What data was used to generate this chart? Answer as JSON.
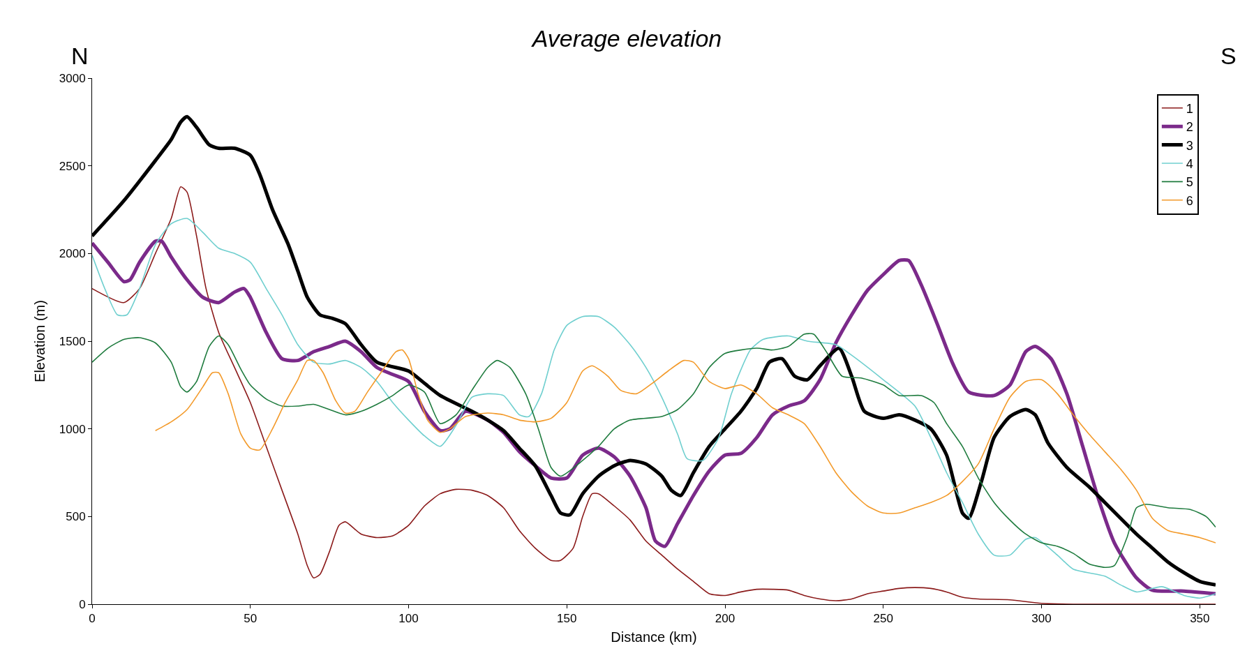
{
  "chart_data": {
    "type": "line",
    "title": "Average elevation",
    "xlabel": "Distance (km)",
    "ylabel": "Elevation (m)",
    "annotations": [
      "N",
      "S"
    ],
    "xlim": [
      0,
      355
    ],
    "xticks": [
      0,
      50,
      100,
      150,
      200,
      250,
      300,
      350
    ],
    "ylim": [
      0,
      3000
    ],
    "yticks": [
      0,
      500,
      1000,
      1500,
      2000,
      2500,
      3000
    ],
    "grid": false,
    "legend": "top right",
    "marker": "none",
    "line_style": "solid",
    "series": [
      {
        "name": "1",
        "color": "#8b1a1a",
        "x": [
          0,
          10,
          15,
          20,
          25,
          28,
          30,
          33,
          36,
          40,
          45,
          50,
          55,
          60,
          65,
          68,
          70,
          72,
          75,
          78,
          80,
          85,
          90,
          95,
          100,
          105,
          110,
          115,
          120,
          125,
          130,
          135,
          140,
          145,
          148,
          152,
          155,
          158,
          160,
          165,
          170,
          175,
          180,
          185,
          190,
          195,
          200,
          205,
          210,
          215,
          220,
          225,
          230,
          235,
          240,
          245,
          250,
          255,
          260,
          265,
          270,
          275,
          280,
          290,
          300,
          310,
          355
        ],
        "values": [
          1800,
          1720,
          1800,
          2000,
          2200,
          2380,
          2350,
          2100,
          1800,
          1550,
          1350,
          1150,
          900,
          650,
          400,
          220,
          150,
          170,
          300,
          450,
          470,
          400,
          380,
          390,
          450,
          560,
          630,
          655,
          650,
          620,
          550,
          420,
          320,
          250,
          250,
          320,
          500,
          630,
          630,
          560,
          480,
          360,
          280,
          200,
          130,
          60,
          50,
          70,
          85,
          85,
          80,
          50,
          30,
          20,
          30,
          60,
          75,
          90,
          95,
          90,
          70,
          40,
          30,
          25,
          5,
          0,
          0
        ]
      },
      {
        "name": "2",
        "color": "#7b2a8a",
        "x": [
          0,
          5,
          10,
          12,
          15,
          20,
          22,
          25,
          30,
          35,
          40,
          45,
          48,
          50,
          55,
          60,
          65,
          70,
          75,
          80,
          85,
          90,
          95,
          100,
          105,
          110,
          113,
          118,
          125,
          130,
          135,
          140,
          145,
          150,
          155,
          160,
          165,
          170,
          175,
          178,
          181,
          185,
          190,
          195,
          200,
          205,
          210,
          215,
          220,
          225,
          230,
          235,
          240,
          245,
          250,
          255,
          258,
          262,
          267,
          272,
          277,
          285,
          290,
          295,
          298,
          303,
          308,
          313,
          318,
          323,
          330,
          335,
          345,
          355
        ],
        "values": [
          2060,
          1950,
          1840,
          1850,
          1950,
          2070,
          2070,
          1980,
          1850,
          1750,
          1720,
          1780,
          1800,
          1750,
          1550,
          1400,
          1390,
          1440,
          1470,
          1500,
          1440,
          1350,
          1310,
          1270,
          1100,
          990,
          1000,
          1100,
          1050,
          980,
          870,
          790,
          720,
          720,
          850,
          890,
          840,
          730,
          550,
          360,
          330,
          460,
          620,
          760,
          850,
          860,
          950,
          1080,
          1130,
          1160,
          1280,
          1490,
          1650,
          1790,
          1880,
          1960,
          1960,
          1820,
          1600,
          1370,
          1210,
          1190,
          1250,
          1440,
          1470,
          1400,
          1200,
          900,
          600,
          350,
          150,
          80,
          75,
          60
        ]
      },
      {
        "name": "3",
        "color": "#000000",
        "x": [
          0,
          10,
          20,
          25,
          28,
          30,
          33,
          37,
          40,
          45,
          50,
          53,
          57,
          62,
          65,
          68,
          72,
          76,
          80,
          85,
          90,
          100,
          105,
          110,
          120,
          125,
          130,
          135,
          140,
          145,
          148,
          151,
          155,
          160,
          165,
          170,
          175,
          180,
          183,
          186,
          190,
          195,
          200,
          205,
          210,
          214,
          218,
          222,
          226,
          230,
          236,
          240,
          244,
          250,
          255,
          260,
          265,
          270,
          275,
          277,
          281,
          285,
          290,
          295,
          298,
          302,
          308,
          315,
          320,
          330,
          335,
          340,
          345,
          350,
          355
        ],
        "values": [
          2100,
          2300,
          2530,
          2650,
          2750,
          2780,
          2720,
          2620,
          2600,
          2600,
          2560,
          2450,
          2250,
          2050,
          1900,
          1750,
          1650,
          1630,
          1600,
          1480,
          1380,
          1330,
          1260,
          1190,
          1100,
          1050,
          990,
          890,
          790,
          620,
          520,
          510,
          630,
          730,
          790,
          820,
          800,
          730,
          650,
          620,
          750,
          900,
          1000,
          1100,
          1230,
          1380,
          1400,
          1300,
          1280,
          1360,
          1460,
          1300,
          1100,
          1060,
          1080,
          1050,
          1000,
          850,
          520,
          490,
          700,
          950,
          1070,
          1110,
          1080,
          920,
          780,
          670,
          580,
          400,
          320,
          240,
          180,
          130,
          110
        ]
      },
      {
        "name": "4",
        "color": "#6fcfcf",
        "x": [
          0,
          4,
          8,
          11,
          15,
          20,
          25,
          30,
          35,
          40,
          45,
          50,
          55,
          60,
          65,
          70,
          75,
          80,
          85,
          90,
          95,
          100,
          105,
          110,
          115,
          120,
          125,
          130,
          135,
          138,
          142,
          146,
          150,
          155,
          160,
          165,
          170,
          175,
          180,
          185,
          188,
          193,
          198,
          202,
          208,
          212,
          220,
          226,
          235,
          240,
          250,
          260,
          265,
          270,
          275,
          280,
          285,
          290,
          295,
          298,
          305,
          310,
          320,
          325,
          330,
          338,
          345,
          350,
          355
        ],
        "values": [
          1990,
          1800,
          1650,
          1650,
          1800,
          2050,
          2170,
          2200,
          2120,
          2030,
          2000,
          1950,
          1800,
          1650,
          1480,
          1380,
          1370,
          1390,
          1350,
          1270,
          1150,
          1050,
          960,
          900,
          1020,
          1180,
          1200,
          1190,
          1080,
          1070,
          1200,
          1450,
          1590,
          1640,
          1640,
          1580,
          1480,
          1350,
          1180,
          970,
          830,
          820,
          950,
          1200,
          1450,
          1510,
          1530,
          1500,
          1480,
          1420,
          1280,
          1130,
          950,
          750,
          580,
          400,
          280,
          280,
          370,
          380,
          280,
          200,
          160,
          110,
          70,
          100,
          50,
          35,
          60
        ]
      },
      {
        "name": "5",
        "color": "#1e7b3e",
        "x": [
          0,
          5,
          10,
          15,
          20,
          25,
          28,
          30,
          33,
          37,
          40,
          43,
          47,
          50,
          55,
          60,
          65,
          70,
          75,
          80,
          85,
          90,
          95,
          100,
          105,
          110,
          115,
          120,
          125,
          128,
          132,
          137,
          141,
          145,
          148,
          155,
          160,
          165,
          170,
          180,
          185,
          190,
          195,
          200,
          210,
          215,
          220,
          225,
          228,
          232,
          237,
          243,
          250,
          255,
          262,
          266,
          270,
          275,
          280,
          285,
          290,
          295,
          300,
          305,
          310,
          315,
          320,
          323,
          327,
          330,
          333,
          340,
          347,
          352,
          355
        ],
        "values": [
          1380,
          1460,
          1510,
          1520,
          1490,
          1380,
          1240,
          1210,
          1270,
          1470,
          1530,
          1480,
          1340,
          1250,
          1170,
          1130,
          1130,
          1140,
          1110,
          1080,
          1100,
          1140,
          1190,
          1250,
          1210,
          1030,
          1080,
          1220,
          1350,
          1390,
          1350,
          1200,
          1000,
          780,
          730,
          820,
          900,
          1000,
          1050,
          1070,
          1110,
          1200,
          1350,
          1430,
          1460,
          1450,
          1470,
          1540,
          1540,
          1440,
          1300,
          1290,
          1250,
          1190,
          1190,
          1150,
          1030,
          900,
          720,
          580,
          480,
          400,
          350,
          330,
          290,
          230,
          210,
          220,
          380,
          550,
          570,
          550,
          540,
          500,
          440
        ]
      },
      {
        "name": "6",
        "color": "#f39a2a",
        "x": [
          20,
          25,
          30,
          35,
          38,
          40,
          43,
          47,
          50,
          53,
          57,
          61,
          65,
          68,
          70,
          73,
          77,
          80,
          83,
          87,
          92,
          96,
          98,
          100,
          103,
          106,
          110,
          113,
          118,
          125,
          130,
          135,
          140,
          145,
          150,
          155,
          158,
          163,
          167,
          172,
          177,
          182,
          187,
          190,
          195,
          200,
          205,
          210,
          215,
          220,
          225,
          230,
          235,
          240,
          245,
          250,
          255,
          260,
          265,
          270,
          275,
          280,
          285,
          290,
          295,
          300,
          305,
          310,
          315,
          320,
          325,
          330,
          335,
          340,
          345,
          350,
          355
        ],
        "values": [
          990,
          1040,
          1110,
          1240,
          1320,
          1320,
          1200,
          970,
          890,
          880,
          1000,
          1150,
          1280,
          1390,
          1390,
          1320,
          1160,
          1090,
          1100,
          1210,
          1340,
          1440,
          1450,
          1400,
          1200,
          1050,
          980,
          1000,
          1070,
          1090,
          1080,
          1050,
          1040,
          1060,
          1150,
          1330,
          1360,
          1300,
          1220,
          1200,
          1260,
          1330,
          1390,
          1380,
          1270,
          1230,
          1250,
          1200,
          1120,
          1080,
          1030,
          900,
          750,
          640,
          560,
          520,
          520,
          550,
          580,
          620,
          700,
          800,
          1000,
          1180,
          1270,
          1280,
          1200,
          1080,
          970,
          870,
          770,
          650,
          490,
          420,
          400,
          380,
          350
        ]
      }
    ]
  }
}
